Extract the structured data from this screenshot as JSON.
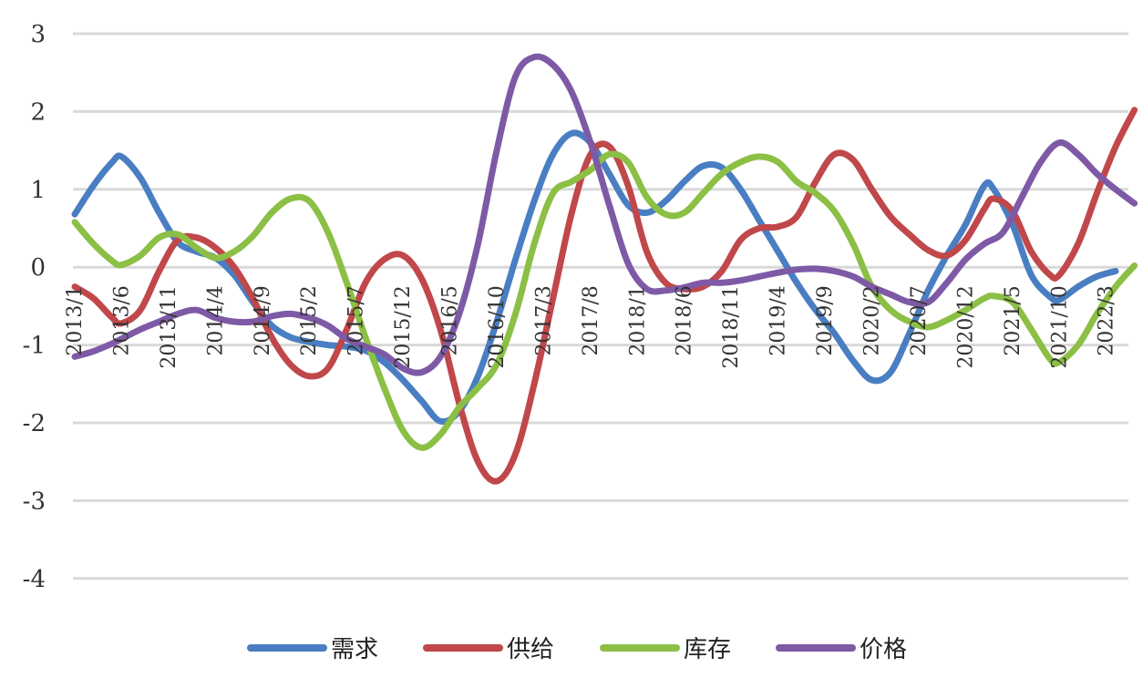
{
  "chart_data": {
    "type": "line",
    "title": "",
    "xlabel": "",
    "ylabel": "",
    "ylim": [
      -4,
      3
    ],
    "yticks": [
      3,
      2,
      1,
      0,
      -1,
      -2,
      -3,
      -4
    ],
    "grid": true,
    "legend_position": "bottom",
    "x_tick_labels": [
      "2013/1",
      "2013/6",
      "2013/11",
      "2014/4",
      "2014/9",
      "2015/2",
      "2015/7",
      "2015/12",
      "2016/5",
      "2016/10",
      "2017/3",
      "2017/8",
      "2018/1",
      "2018/6",
      "2018/11",
      "2019/4",
      "2019/9",
      "2020/2",
      "2020/7",
      "2020/12",
      "2021/5",
      "2021/10",
      "2022/3"
    ],
    "x_start": "2013/1",
    "x_end": "2022/4",
    "series": [
      {
        "name": "需求",
        "color": "#4A7EC2",
        "points": [
          [
            "2013/1",
            0.68
          ],
          [
            "2013/3",
            1.05
          ],
          [
            "2013/5",
            1.35
          ],
          [
            "2013/6",
            1.42
          ],
          [
            "2013/8",
            1.15
          ],
          [
            "2013/10",
            0.7
          ],
          [
            "2013/12",
            0.32
          ],
          [
            "2014/2",
            0.2
          ],
          [
            "2014/4",
            0.12
          ],
          [
            "2014/6",
            -0.1
          ],
          [
            "2014/8",
            -0.45
          ],
          [
            "2014/10",
            -0.75
          ],
          [
            "2014/12",
            -0.9
          ],
          [
            "2015/2",
            -0.96
          ],
          [
            "2015/4",
            -1.0
          ],
          [
            "2015/6",
            -1.02
          ],
          [
            "2015/8",
            -1.07
          ],
          [
            "2015/10",
            -1.22
          ],
          [
            "2015/12",
            -1.45
          ],
          [
            "2016/2",
            -1.72
          ],
          [
            "2016/4",
            -1.98
          ],
          [
            "2016/6",
            -1.85
          ],
          [
            "2016/8",
            -1.4
          ],
          [
            "2016/10",
            -0.7
          ],
          [
            "2016/12",
            0.1
          ],
          [
            "2017/2",
            0.85
          ],
          [
            "2017/4",
            1.45
          ],
          [
            "2017/6",
            1.72
          ],
          [
            "2017/8",
            1.6
          ],
          [
            "2017/10",
            1.2
          ],
          [
            "2017/12",
            0.8
          ],
          [
            "2018/2",
            0.7
          ],
          [
            "2018/4",
            0.85
          ],
          [
            "2018/6",
            1.1
          ],
          [
            "2018/8",
            1.3
          ],
          [
            "2018/10",
            1.28
          ],
          [
            "2018/12",
            1.0
          ],
          [
            "2019/2",
            0.6
          ],
          [
            "2019/4",
            0.2
          ],
          [
            "2019/6",
            -0.2
          ],
          [
            "2019/8",
            -0.55
          ],
          [
            "2019/10",
            -0.85
          ],
          [
            "2019/12",
            -1.2
          ],
          [
            "2020/2",
            -1.45
          ],
          [
            "2020/4",
            -1.35
          ],
          [
            "2020/6",
            -0.85
          ],
          [
            "2020/8",
            -0.3
          ],
          [
            "2020/10",
            0.15
          ],
          [
            "2020/12",
            0.55
          ],
          [
            "2021/2",
            1.05
          ],
          [
            "2021/3",
            1.0
          ],
          [
            "2021/5",
            0.55
          ],
          [
            "2021/7",
            -0.1
          ],
          [
            "2021/9",
            -0.38
          ],
          [
            "2021/10",
            -0.42
          ],
          [
            "2021/12",
            -0.25
          ],
          [
            "2022/2",
            -0.12
          ],
          [
            "2022/4",
            -0.05
          ]
        ]
      },
      {
        "name": "供给",
        "color": "#C0474A",
        "points": [
          [
            "2013/1",
            -0.25
          ],
          [
            "2013/3",
            -0.4
          ],
          [
            "2013/5",
            -0.65
          ],
          [
            "2013/6",
            -0.72
          ],
          [
            "2013/8",
            -0.55
          ],
          [
            "2013/10",
            -0.05
          ],
          [
            "2013/12",
            0.35
          ],
          [
            "2014/2",
            0.38
          ],
          [
            "2014/4",
            0.25
          ],
          [
            "2014/6",
            0.0
          ],
          [
            "2014/8",
            -0.4
          ],
          [
            "2014/10",
            -0.9
          ],
          [
            "2014/12",
            -1.25
          ],
          [
            "2015/2",
            -1.4
          ],
          [
            "2015/4",
            -1.3
          ],
          [
            "2015/6",
            -0.8
          ],
          [
            "2015/8",
            -0.2
          ],
          [
            "2015/10",
            0.1
          ],
          [
            "2015/12",
            0.15
          ],
          [
            "2016/2",
            -0.15
          ],
          [
            "2016/4",
            -0.8
          ],
          [
            "2016/6",
            -1.75
          ],
          [
            "2016/8",
            -2.5
          ],
          [
            "2016/10",
            -2.75
          ],
          [
            "2016/12",
            -2.4
          ],
          [
            "2017/2",
            -1.5
          ],
          [
            "2017/4",
            -0.4
          ],
          [
            "2017/6",
            0.7
          ],
          [
            "2017/8",
            1.45
          ],
          [
            "2017/10",
            1.55
          ],
          [
            "2017/12",
            1.05
          ],
          [
            "2018/2",
            0.2
          ],
          [
            "2018/4",
            -0.2
          ],
          [
            "2018/6",
            -0.28
          ],
          [
            "2018/8",
            -0.25
          ],
          [
            "2018/10",
            -0.05
          ],
          [
            "2018/12",
            0.35
          ],
          [
            "2019/2",
            0.5
          ],
          [
            "2019/4",
            0.52
          ],
          [
            "2019/6",
            0.65
          ],
          [
            "2019/8",
            1.1
          ],
          [
            "2019/10",
            1.45
          ],
          [
            "2019/12",
            1.38
          ],
          [
            "2020/2",
            1.0
          ],
          [
            "2020/4",
            0.65
          ],
          [
            "2020/6",
            0.42
          ],
          [
            "2020/8",
            0.22
          ],
          [
            "2020/10",
            0.15
          ],
          [
            "2020/12",
            0.35
          ],
          [
            "2021/2",
            0.75
          ],
          [
            "2021/3",
            0.88
          ],
          [
            "2021/5",
            0.72
          ],
          [
            "2021/7",
            0.2
          ],
          [
            "2021/9",
            -0.1
          ],
          [
            "2021/10",
            -0.1
          ],
          [
            "2021/12",
            0.3
          ],
          [
            "2022/2",
            0.95
          ],
          [
            "2022/4",
            1.55
          ],
          [
            "2022/6",
            2.02
          ]
        ]
      },
      {
        "name": "库存",
        "color": "#8CBF45",
        "points": [
          [
            "2013/1",
            0.58
          ],
          [
            "2013/3",
            0.3
          ],
          [
            "2013/5",
            0.08
          ],
          [
            "2013/6",
            0.03
          ],
          [
            "2013/8",
            0.15
          ],
          [
            "2013/10",
            0.38
          ],
          [
            "2013/12",
            0.42
          ],
          [
            "2014/2",
            0.25
          ],
          [
            "2014/4",
            0.12
          ],
          [
            "2014/6",
            0.2
          ],
          [
            "2014/8",
            0.4
          ],
          [
            "2014/10",
            0.7
          ],
          [
            "2014/12",
            0.88
          ],
          [
            "2015/2",
            0.85
          ],
          [
            "2015/4",
            0.45
          ],
          [
            "2015/6",
            -0.2
          ],
          [
            "2015/8",
            -0.9
          ],
          [
            "2015/10",
            -1.55
          ],
          [
            "2015/12",
            -2.1
          ],
          [
            "2016/2",
            -2.32
          ],
          [
            "2016/4",
            -2.15
          ],
          [
            "2016/6",
            -1.8
          ],
          [
            "2016/8",
            -1.55
          ],
          [
            "2016/10",
            -1.25
          ],
          [
            "2016/12",
            -0.6
          ],
          [
            "2017/2",
            0.3
          ],
          [
            "2017/4",
            0.95
          ],
          [
            "2017/6",
            1.1
          ],
          [
            "2017/8",
            1.25
          ],
          [
            "2017/10",
            1.45
          ],
          [
            "2017/12",
            1.35
          ],
          [
            "2018/2",
            0.9
          ],
          [
            "2018/4",
            0.68
          ],
          [
            "2018/6",
            0.7
          ],
          [
            "2018/8",
            0.95
          ],
          [
            "2018/10",
            1.2
          ],
          [
            "2018/12",
            1.35
          ],
          [
            "2019/2",
            1.42
          ],
          [
            "2019/4",
            1.35
          ],
          [
            "2019/6",
            1.1
          ],
          [
            "2019/8",
            0.95
          ],
          [
            "2019/10",
            0.72
          ],
          [
            "2019/12",
            0.3
          ],
          [
            "2020/2",
            -0.25
          ],
          [
            "2020/4",
            -0.55
          ],
          [
            "2020/6",
            -0.7
          ],
          [
            "2020/8",
            -0.77
          ],
          [
            "2020/10",
            -0.68
          ],
          [
            "2020/12",
            -0.55
          ],
          [
            "2021/2",
            -0.4
          ],
          [
            "2021/3",
            -0.37
          ],
          [
            "2021/5",
            -0.45
          ],
          [
            "2021/7",
            -0.8
          ],
          [
            "2021/9",
            -1.18
          ],
          [
            "2021/10",
            -1.22
          ],
          [
            "2021/12",
            -1.0
          ],
          [
            "2022/2",
            -0.6
          ],
          [
            "2022/4",
            -0.25
          ],
          [
            "2022/6",
            0.02
          ]
        ]
      },
      {
        "name": "价格",
        "color": "#7E5AA6",
        "points": [
          [
            "2013/1",
            -1.15
          ],
          [
            "2013/3",
            -1.08
          ],
          [
            "2013/5",
            -0.98
          ],
          [
            "2013/6",
            -0.92
          ],
          [
            "2013/8",
            -0.8
          ],
          [
            "2013/10",
            -0.7
          ],
          [
            "2013/12",
            -0.6
          ],
          [
            "2014/2",
            -0.55
          ],
          [
            "2014/4",
            -0.65
          ],
          [
            "2014/6",
            -0.7
          ],
          [
            "2014/8",
            -0.7
          ],
          [
            "2014/10",
            -0.63
          ],
          [
            "2014/12",
            -0.6
          ],
          [
            "2015/2",
            -0.65
          ],
          [
            "2015/4",
            -0.75
          ],
          [
            "2015/6",
            -0.92
          ],
          [
            "2015/8",
            -1.02
          ],
          [
            "2015/10",
            -1.12
          ],
          [
            "2015/12",
            -1.3
          ],
          [
            "2016/2",
            -1.35
          ],
          [
            "2016/4",
            -1.15
          ],
          [
            "2016/6",
            -0.6
          ],
          [
            "2016/8",
            0.3
          ],
          [
            "2016/10",
            1.5
          ],
          [
            "2016/12",
            2.45
          ],
          [
            "2017/2",
            2.7
          ],
          [
            "2017/4",
            2.6
          ],
          [
            "2017/6",
            2.25
          ],
          [
            "2017/8",
            1.6
          ],
          [
            "2017/10",
            0.8
          ],
          [
            "2017/12",
            0.05
          ],
          [
            "2018/2",
            -0.28
          ],
          [
            "2018/4",
            -0.3
          ],
          [
            "2018/6",
            -0.26
          ],
          [
            "2018/8",
            -0.2
          ],
          [
            "2018/10",
            -0.2
          ],
          [
            "2018/12",
            -0.17
          ],
          [
            "2019/2",
            -0.12
          ],
          [
            "2019/4",
            -0.07
          ],
          [
            "2019/6",
            -0.03
          ],
          [
            "2019/8",
            -0.02
          ],
          [
            "2019/10",
            -0.05
          ],
          [
            "2019/12",
            -0.12
          ],
          [
            "2020/2",
            -0.25
          ],
          [
            "2020/4",
            -0.35
          ],
          [
            "2020/6",
            -0.45
          ],
          [
            "2020/8",
            -0.45
          ],
          [
            "2020/10",
            -0.2
          ],
          [
            "2020/12",
            0.1
          ],
          [
            "2021/2",
            0.3
          ],
          [
            "2021/4",
            0.45
          ],
          [
            "2021/6",
            0.9
          ],
          [
            "2021/8",
            1.35
          ],
          [
            "2021/10",
            1.6
          ],
          [
            "2021/12",
            1.45
          ],
          [
            "2022/2",
            1.2
          ],
          [
            "2022/4",
            1.0
          ],
          [
            "2022/6",
            0.82
          ]
        ]
      }
    ]
  }
}
